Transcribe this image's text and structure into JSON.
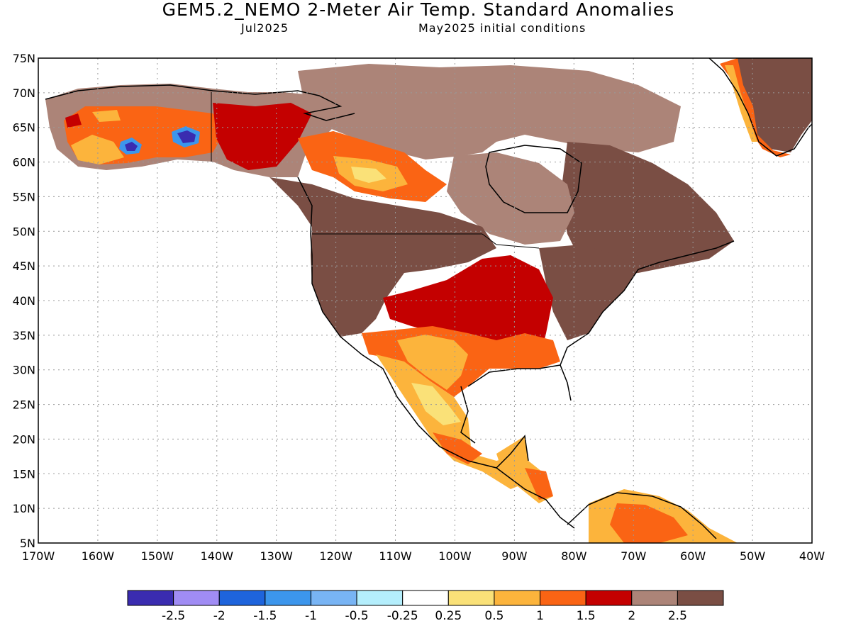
{
  "title": "GEM5.2_NEMO 2-Meter Air Temp. Standard Anomalies",
  "subtitle_left": "Jul2025",
  "subtitle_right": "May2025 initial conditions",
  "lat_labels": [
    "75N",
    "70N",
    "65N",
    "60N",
    "55N",
    "50N",
    "45N",
    "40N",
    "35N",
    "30N",
    "25N",
    "20N",
    "15N",
    "10N",
    "5N"
  ],
  "lon_labels": [
    "170W",
    "160W",
    "150W",
    "140W",
    "130W",
    "120W",
    "110W",
    "100W",
    "90W",
    "80W",
    "70W",
    "60W",
    "50W",
    "40W"
  ],
  "colorbar": {
    "colors": [
      "#3a2cb0",
      "#a08cf4",
      "#1e64dc",
      "#3c96ec",
      "#78b4f4",
      "#b4eefc",
      "#ffffff",
      "#fae178",
      "#fcb43c",
      "#fa6414",
      "#c40000",
      "#ac8478",
      "#7a4e44"
    ],
    "labels": [
      "-2.5",
      "-2",
      "-1.5",
      "-1",
      "-0.5",
      "-0.25",
      "0.25",
      "0.5",
      "1",
      "1.5",
      "2",
      "2.5"
    ]
  }
}
